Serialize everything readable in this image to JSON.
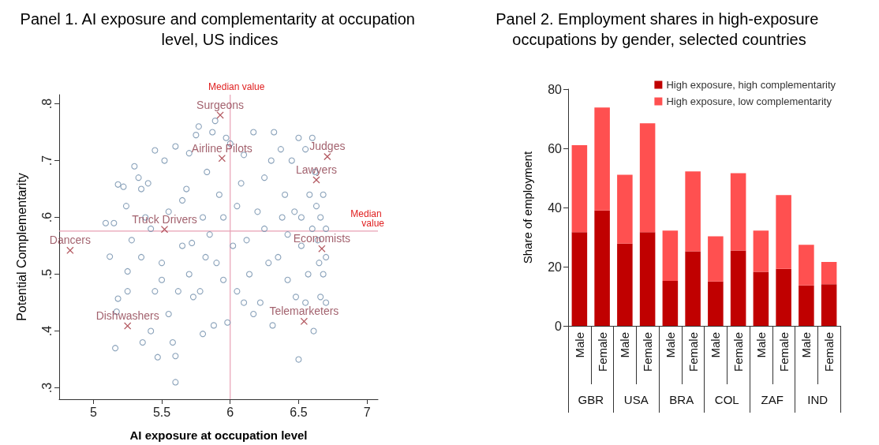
{
  "chart_data": [
    {
      "type": "scatter",
      "title": "Panel 1. AI exposure and complementarity at occupation level, US indices",
      "xlabel": "AI exposure at occupation level",
      "ylabel": "Potential Complementarity",
      "xlim": [
        4.75,
        7.08
      ],
      "xticks": [
        5,
        5.5,
        6,
        6.5,
        7
      ],
      "ylim": [
        0.28,
        0.816
      ],
      "yticks": [
        {
          "value": 0.3,
          "label": ".3"
        },
        {
          "value": 0.4,
          "label": ".4"
        },
        {
          "value": 0.5,
          "label": ".5"
        },
        {
          "value": 0.6,
          "label": ".6"
        },
        {
          "value": 0.7,
          "label": ".7"
        },
        {
          "value": 0.8,
          "label": ".8"
        }
      ],
      "grid": false,
      "legend": false,
      "series": [
        {
          "color": "#7d98b3",
          "marker": "circle",
          "x": [
            5.09,
            5.16,
            5.18,
            5.17,
            5.12,
            5.18,
            5.22,
            5.24,
            5.25,
            5.25,
            5.3,
            5.33,
            5.36,
            5.35,
            5.4,
            5.45,
            5.42,
            5.47,
            5.5,
            5.5,
            5.52,
            5.55,
            5.58,
            5.6,
            5.6,
            5.6,
            5.62,
            5.65,
            5.7,
            5.68,
            5.72,
            5.75,
            5.77,
            5.73,
            5.8,
            5.8,
            5.83,
            5.85,
            5.87,
            5.88,
            5.89,
            5.9,
            5.92,
            5.95,
            5.95,
            5.97,
            5.98,
            6.0,
            6.02,
            6.05,
            6.08,
            6.1,
            6.12,
            6.14,
            6.17,
            6.2,
            6.17,
            6.22,
            6.25,
            6.3,
            6.32,
            6.31,
            6.35,
            6.37,
            6.4,
            6.42,
            6.42,
            6.45,
            6.47,
            6.48,
            6.5,
            6.5,
            6.52,
            6.52,
            6.55,
            6.55,
            6.57,
            6.58,
            6.6,
            6.6,
            6.61,
            6.62,
            6.63,
            6.64,
            6.65,
            6.66,
            6.66,
            6.68,
            6.68,
            6.7,
            6.7,
            6.7,
            5.28,
            5.35,
            5.42,
            5.45,
            5.55,
            5.65,
            5.7,
            5.78,
            5.82,
            6.05,
            6.1,
            6.25,
            6.28,
            6.38,
            5.38,
            5.15
          ],
          "values": [
            0.59,
            0.37,
            0.457,
            0.434,
            0.531,
            0.658,
            0.654,
            0.62,
            0.47,
            0.505,
            0.69,
            0.67,
            0.38,
            0.65,
            0.66,
            0.718,
            0.4,
            0.354,
            0.52,
            0.49,
            0.7,
            0.61,
            0.38,
            0.725,
            0.31,
            0.356,
            0.47,
            0.55,
            0.713,
            0.65,
            0.555,
            0.745,
            0.76,
            0.46,
            0.395,
            0.6,
            0.68,
            0.57,
            0.75,
            0.41,
            0.77,
            0.52,
            0.64,
            0.6,
            0.49,
            0.74,
            0.415,
            0.73,
            0.55,
            0.47,
            0.66,
            0.71,
            0.56,
            0.5,
            0.75,
            0.61,
            0.43,
            0.45,
            0.67,
            0.7,
            0.75,
            0.41,
            0.53,
            0.72,
            0.64,
            0.57,
            0.49,
            0.7,
            0.61,
            0.46,
            0.74,
            0.35,
            0.6,
            0.55,
            0.72,
            0.45,
            0.5,
            0.64,
            0.74,
            0.58,
            0.4,
            0.68,
            0.62,
            0.56,
            0.52,
            0.6,
            0.46,
            0.64,
            0.5,
            0.58,
            0.53,
            0.45,
            0.56,
            0.53,
            0.58,
            0.47,
            0.43,
            0.63,
            0.5,
            0.47,
            0.53,
            0.62,
            0.45,
            0.58,
            0.52,
            0.6,
            0.6,
            0.59
          ]
        },
        {
          "color": "#a0303a",
          "marker": "cross",
          "x": [
            5.927,
            5.94,
            6.71,
            6.63,
            5.52,
            4.83,
            6.67,
            5.25,
            6.54
          ],
          "values": [
            0.78,
            0.704,
            0.707,
            0.666,
            0.579,
            0.542,
            0.545,
            0.409,
            0.417
          ]
        }
      ],
      "annotations": [
        {
          "text": "Surgeons",
          "x": 5.927,
          "y": 0.78
        },
        {
          "text": "Airline Pilots",
          "x": 5.94,
          "y": 0.704
        },
        {
          "text": "Judges",
          "x": 6.71,
          "y": 0.707
        },
        {
          "text": "Lawyers",
          "x": 6.63,
          "y": 0.666
        },
        {
          "text": "Truck Drivers",
          "x": 5.52,
          "y": 0.579
        },
        {
          "text": "Dancers",
          "x": 4.83,
          "y": 0.542
        },
        {
          "text": "Economists",
          "x": 6.67,
          "y": 0.545
        },
        {
          "text": "Dishwashers",
          "x": 5.25,
          "y": 0.409
        },
        {
          "text": "Telemarketers",
          "x": 6.54,
          "y": 0.417
        }
      ],
      "ref_lines": [
        {
          "axis": "x",
          "value": 6,
          "label": "Median value",
          "color": "#e8a0b4"
        },
        {
          "axis": "y",
          "value": 0.576,
          "label": "Median value",
          "color": "#e8a0b4"
        }
      ]
    },
    {
      "type": "bar",
      "stacked": true,
      "title": "Panel 2. Employment shares in high-exposure occupations by gender, selected countries",
      "ylabel": "Share of employment",
      "categories": [
        "Male",
        "Female",
        "Male",
        "Female",
        "Male",
        "Female",
        "Male",
        "Female",
        "Male",
        "Female",
        "Male",
        "Female"
      ],
      "annotations": [
        "GBR",
        "USA",
        "BRA",
        "COL",
        "ZAF",
        "IND"
      ],
      "ylim": [
        0,
        80
      ],
      "yticks": [
        0,
        20,
        40,
        60,
        80
      ],
      "grid": false,
      "legend": "top right",
      "series": [
        {
          "name": "High exposure, high complementarity",
          "color": "#c00000",
          "values": [
            31.7,
            39.0,
            27.8,
            31.7,
            15.2,
            25.2,
            15.0,
            25.5,
            18.3,
            19.3,
            13.7,
            14.1
          ]
        },
        {
          "name": "High exposure, low complementarity",
          "color": "#ff5050",
          "values": [
            29.4,
            34.8,
            23.3,
            36.8,
            17.0,
            27.0,
            15.3,
            26.1,
            13.9,
            24.9,
            13.7,
            7.5
          ]
        }
      ]
    }
  ]
}
